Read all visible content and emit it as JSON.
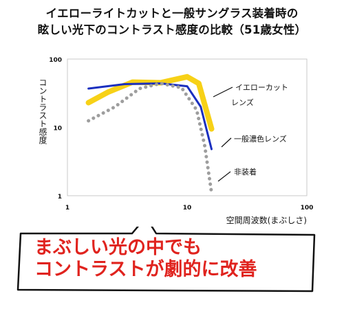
{
  "title_line1": "イエローライトカットと一般サングラス装着時の",
  "title_line2": "眩しい光下のコントラスト感度の比較（51歳女性）",
  "callout": {
    "line1": "まぶしい光の中でも",
    "line2": "コントラストが劇的に改善",
    "color": "#e0231e"
  },
  "chart_data": {
    "type": "line",
    "title": "イエローライトカットと一般サングラス装着時の眩しい光下のコントラスト感度の比較（51歳女性）",
    "xlabel": "空間周波数(まぶしさ)",
    "ylabel": "コントラスト感度",
    "xscale": "log",
    "yscale": "log",
    "xlim": [
      1,
      100
    ],
    "ylim": [
      1,
      100
    ],
    "x_ticks": [
      1,
      10,
      100
    ],
    "y_ticks": [
      1,
      10,
      100
    ],
    "x_tick_labels": [
      "1",
      "10",
      "100"
    ],
    "y_tick_labels": [
      "1",
      "10",
      "100"
    ],
    "grid": false,
    "legend": "direct-labels-right",
    "series": [
      {
        "name": "イエローカットレンズ",
        "color": "#f7d117",
        "style": "thick-solid",
        "x": [
          1.5,
          2.2,
          3.5,
          6,
          10,
          12.5,
          16
        ],
        "y": [
          23,
          33,
          46,
          45,
          55,
          44,
          9.5
        ]
      },
      {
        "name": "一般濃色レンズ",
        "color": "#1a2fbf",
        "style": "solid",
        "x": [
          1.5,
          3,
          6,
          10,
          13,
          16
        ],
        "y": [
          37,
          43,
          44,
          40,
          20,
          4.8
        ]
      },
      {
        "name": "非装着",
        "color": "#9e9e9e",
        "style": "dotted",
        "x": [
          1.5,
          2.5,
          4,
          6,
          9,
          12,
          14,
          16
        ],
        "y": [
          12.5,
          20,
          37,
          44,
          38,
          18,
          5.5,
          1.1
        ]
      }
    ]
  }
}
